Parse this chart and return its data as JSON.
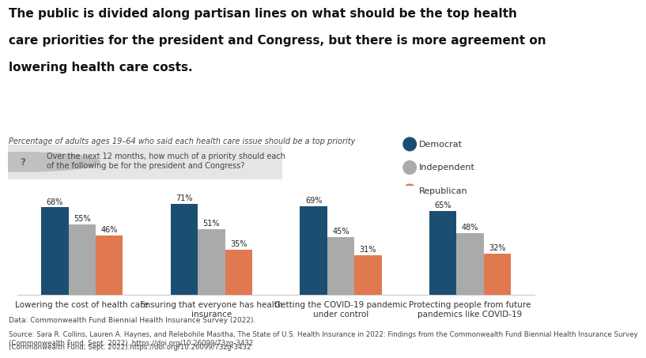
{
  "title_line1": "The public is divided along partisan lines on what should be the top health",
  "title_line2": "care priorities for the president and Congress, but there is more agreement on",
  "title_line3": "lowering health care costs.",
  "subtitle": "Percentage of adults ages 19–64 who said each health care issue should be a top priority",
  "question_box": "Over the next 12 months, how much of a priority should each\nof the following be for the president and Congress?",
  "categories": [
    "Lowering the cost of health care",
    "Ensuring that everyone has health\ninsurance",
    "Getting the COVID-19 pandemic\nunder control",
    "Protecting people from future\npandemics like COVID-19"
  ],
  "series": [
    {
      "label": "Democrat",
      "color": "#1b4f72",
      "values": [
        68,
        71,
        69,
        65
      ]
    },
    {
      "label": "Independent",
      "color": "#aaaaaa",
      "values": [
        55,
        51,
        45,
        48
      ]
    },
    {
      "label": "Republican",
      "color": "#e07850",
      "values": [
        46,
        35,
        31,
        32
      ]
    }
  ],
  "ylim": [
    0,
    85
  ],
  "data_note": "Data: Commonwealth Fund Biennial Health Insurance Survey (2022).",
  "source_plain": "Source: Sara R. Collins, Lauren A. Haynes, and Relebohile Masitha, ",
  "source_italic": "The State of U.S. Health Insurance in 2022: Findings from the Commonwealth Fund Biennial Health Insurance Survey",
  "source_end": "\n(Commonwealth Fund, Sept. 2022). ",
  "source_link": "https://doi.org/10.26099/73zg-3432",
  "background_color": "#ffffff",
  "bar_width": 0.21
}
